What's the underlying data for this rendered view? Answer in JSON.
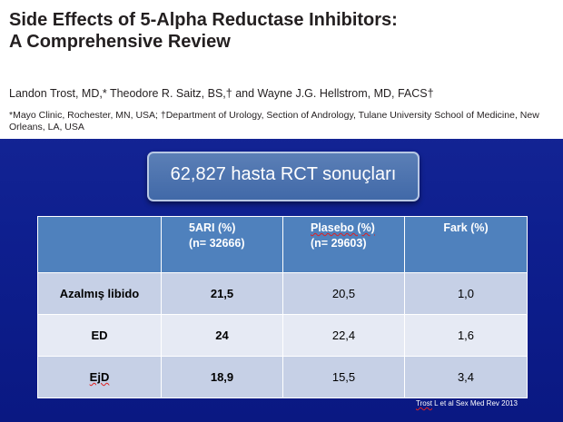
{
  "header": {
    "title_line1": "Side Effects of 5-Alpha Reductase Inhibitors:",
    "title_line2": "A Comprehensive Review",
    "authors": "Landon Trost, MD,* Theodore R. Saitz, BS,† and Wayne J.G. Hellstrom, MD, FACS†",
    "affiliation": "*Mayo Clinic, Rochester, MN, USA; †Department of Urology, Section of Andrology, Tulane University School of Medicine, New Orleans, LA, USA"
  },
  "summary_box": {
    "text": "62,827 hasta RCT sonuçları"
  },
  "table": {
    "headers": [
      {
        "line1": "",
        "line2": ""
      },
      {
        "line1": "5ARI (%)",
        "line2": "(n= 32666)"
      },
      {
        "line1": "Plasebo (%)",
        "line2": "(n= 29603)"
      },
      {
        "line1": "Fark (%)",
        "line2": ""
      }
    ],
    "rows": [
      {
        "label": "Azalmış libido",
        "ari": "21,5",
        "placebo": "20,5",
        "diff": "1,0"
      },
      {
        "label": "ED",
        "ari": "24",
        "placebo": "22,4",
        "diff": "1,6"
      },
      {
        "label": "EjD",
        "ari": "18,9",
        "placebo": "15,5",
        "diff": "3,4"
      }
    ]
  },
  "citation": {
    "author": "Trost",
    "rest": " L et al Sex Med Rev 2013"
  },
  "colors": {
    "background": "#0e1f8f",
    "table_header": "#4f81bd",
    "row_odd": "#c6d0e6",
    "row_even": "#e6eaf4"
  }
}
